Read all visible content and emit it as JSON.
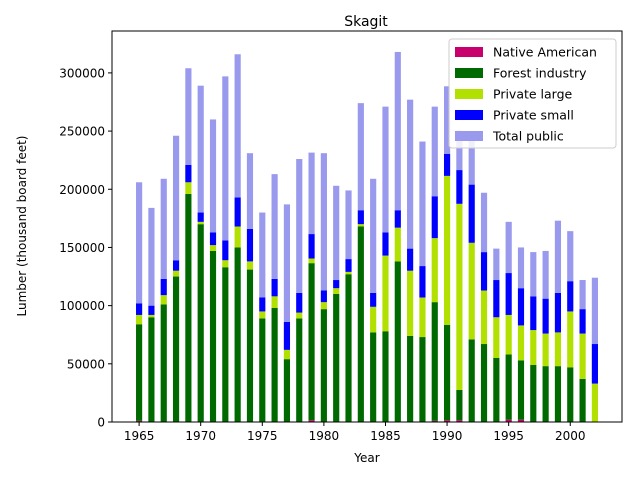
{
  "chart_data": {
    "type": "bar",
    "stacked": true,
    "title": "Skagit",
    "xlabel": "Year",
    "ylabel": "Lumber (thousand board feet)",
    "xlim": [
      1962.8,
      2004.2
    ],
    "ylim": [
      0,
      336000
    ],
    "xticks": [
      1965,
      1970,
      1975,
      1980,
      1985,
      1990,
      1995,
      2000
    ],
    "yticks": [
      0,
      50000,
      100000,
      150000,
      200000,
      250000,
      300000
    ],
    "ytick_labels": [
      "0",
      "50000",
      "100000",
      "150000",
      "200000",
      "250000",
      "300000"
    ],
    "legend_position": "top-right",
    "x": [
      1965,
      1966,
      1967,
      1968,
      1969,
      1970,
      1971,
      1972,
      1973,
      1974,
      1975,
      1976,
      1977,
      1978,
      1979,
      1980,
      1981,
      1982,
      1983,
      1984,
      1985,
      1986,
      1987,
      1988,
      1989,
      1990,
      1991,
      1992,
      1993,
      1994,
      1995,
      1996,
      1997,
      1998,
      1999,
      2000,
      2001,
      2002
    ],
    "series": [
      {
        "name": "Native American",
        "color": "#c8006e",
        "values": [
          1000,
          0,
          0,
          0,
          0,
          0,
          0,
          0,
          0,
          0,
          0,
          0,
          0,
          0,
          1500,
          0,
          0,
          0,
          0,
          0,
          0,
          0,
          0,
          0,
          1000,
          1500,
          1500,
          0,
          0,
          0,
          2000,
          2000,
          0,
          0,
          0,
          0,
          0,
          0
        ]
      },
      {
        "name": "Forest industry",
        "color": "#006a00",
        "values": [
          83000,
          90000,
          101000,
          125000,
          196000,
          170000,
          147000,
          133000,
          150000,
          131000,
          89000,
          98000,
          54000,
          89000,
          135000,
          97000,
          110000,
          127000,
          168000,
          77000,
          78000,
          138000,
          74000,
          73000,
          102000,
          82000,
          26000,
          71000,
          67000,
          55000,
          56000,
          51000,
          49000,
          48000,
          48000,
          47000,
          37000,
          0
        ]
      },
      {
        "name": "Private large",
        "color": "#b2e000",
        "values": [
          8000,
          2000,
          8000,
          5000,
          10000,
          2000,
          5000,
          6000,
          18000,
          7000,
          6000,
          10000,
          8000,
          5000,
          4000,
          6000,
          5000,
          2000,
          2000,
          22000,
          65000,
          29000,
          56000,
          34000,
          55000,
          128000,
          160000,
          83000,
          46000,
          35000,
          34000,
          30000,
          30000,
          28000,
          29000,
          48000,
          39000,
          33000
        ]
      },
      {
        "name": "Private small",
        "color": "#0000ff",
        "values": [
          10000,
          8000,
          14000,
          9000,
          15000,
          8000,
          11000,
          17000,
          25000,
          28000,
          12000,
          15000,
          24000,
          17000,
          21000,
          10000,
          7000,
          11000,
          12000,
          12000,
          20000,
          15000,
          19000,
          27000,
          36000,
          19000,
          29000,
          50000,
          33000,
          32000,
          36000,
          32000,
          29000,
          30000,
          34000,
          26000,
          21000,
          34000
        ]
      },
      {
        "name": "Total public",
        "color": "#9999ee",
        "values": [
          104000,
          84000,
          86000,
          107000,
          83000,
          109000,
          97000,
          141000,
          123000,
          65000,
          73000,
          90000,
          101000,
          115000,
          70000,
          118000,
          81000,
          59000,
          92000,
          98000,
          108000,
          136000,
          128000,
          107000,
          77000,
          58000,
          34000,
          46000,
          51000,
          27000,
          44000,
          35000,
          38000,
          41000,
          62000,
          43000,
          25000,
          57000
        ]
      }
    ]
  }
}
